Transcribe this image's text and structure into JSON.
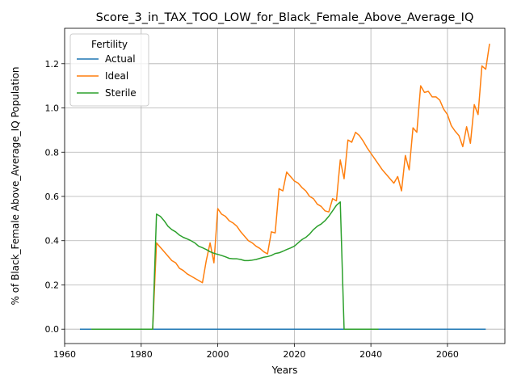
{
  "chart_data": {
    "type": "line",
    "title": "Score_3_in_TAX_TOO_LOW_for_Black_Female_Above_Average_IQ",
    "xlabel": "Years",
    "ylabel": "% of Black_Female Above_Average_IQ Population",
    "xlim": [
      1960,
      2075
    ],
    "ylim": [
      -0.065,
      1.36
    ],
    "xticks": [
      1960,
      1980,
      2000,
      2020,
      2040,
      2060
    ],
    "yticks": [
      0.0,
      0.2,
      0.4,
      0.6,
      0.8,
      1.0,
      1.2
    ],
    "xtick_labels": [
      "1960",
      "1980",
      "2000",
      "2020",
      "2040",
      "2060"
    ],
    "ytick_labels": [
      "0.0",
      "0.2",
      "0.4",
      "0.6",
      "0.8",
      "1.0",
      "1.2"
    ],
    "grid": true,
    "legend": {
      "title": "Fertility",
      "placement": "top-left"
    },
    "series": [
      {
        "name": "Actual",
        "color": "#1f77b4",
        "points": [
          [
            1964,
            0.0
          ],
          [
            2070,
            0.0
          ]
        ]
      },
      {
        "name": "Ideal",
        "color": "#ff7f0e",
        "points": [
          [
            1967,
            0.0
          ],
          [
            1983,
            0.0
          ],
          [
            1984,
            0.39
          ],
          [
            1985,
            0.37
          ],
          [
            1986,
            0.35
          ],
          [
            1987,
            0.33
          ],
          [
            1988,
            0.31
          ],
          [
            1989,
            0.3
          ],
          [
            1990,
            0.275
          ],
          [
            1991,
            0.265
          ],
          [
            1992,
            0.25
          ],
          [
            1993,
            0.24
          ],
          [
            1994,
            0.23
          ],
          [
            1995,
            0.22
          ],
          [
            1996,
            0.21
          ],
          [
            1997,
            0.31
          ],
          [
            1998,
            0.39
          ],
          [
            1999,
            0.3
          ],
          [
            2000,
            0.545
          ],
          [
            2001,
            0.52
          ],
          [
            2002,
            0.51
          ],
          [
            2003,
            0.49
          ],
          [
            2004,
            0.48
          ],
          [
            2005,
            0.465
          ],
          [
            2006,
            0.44
          ],
          [
            2007,
            0.42
          ],
          [
            2008,
            0.4
          ],
          [
            2009,
            0.39
          ],
          [
            2010,
            0.375
          ],
          [
            2011,
            0.365
          ],
          [
            2012,
            0.35
          ],
          [
            2013,
            0.34
          ],
          [
            2014,
            0.44
          ],
          [
            2015,
            0.435
          ],
          [
            2016,
            0.635
          ],
          [
            2017,
            0.625
          ],
          [
            2018,
            0.71
          ],
          [
            2019,
            0.69
          ],
          [
            2020,
            0.67
          ],
          [
            2021,
            0.66
          ],
          [
            2022,
            0.64
          ],
          [
            2023,
            0.625
          ],
          [
            2024,
            0.6
          ],
          [
            2025,
            0.59
          ],
          [
            2026,
            0.565
          ],
          [
            2027,
            0.555
          ],
          [
            2028,
            0.535
          ],
          [
            2029,
            0.53
          ],
          [
            2030,
            0.59
          ],
          [
            2031,
            0.58
          ],
          [
            2032,
            0.765
          ],
          [
            2033,
            0.68
          ],
          [
            2034,
            0.855
          ],
          [
            2035,
            0.845
          ],
          [
            2036,
            0.89
          ],
          [
            2037,
            0.875
          ],
          [
            2038,
            0.85
          ],
          [
            2039,
            0.82
          ],
          [
            2040,
            0.795
          ],
          [
            2041,
            0.77
          ],
          [
            2042,
            0.745
          ],
          [
            2043,
            0.72
          ],
          [
            2044,
            0.7
          ],
          [
            2045,
            0.68
          ],
          [
            2046,
            0.66
          ],
          [
            2047,
            0.69
          ],
          [
            2048,
            0.625
          ],
          [
            2049,
            0.785
          ],
          [
            2050,
            0.72
          ],
          [
            2051,
            0.91
          ],
          [
            2052,
            0.89
          ],
          [
            2053,
            1.1
          ],
          [
            2054,
            1.07
          ],
          [
            2055,
            1.075
          ],
          [
            2056,
            1.05
          ],
          [
            2057,
            1.05
          ],
          [
            2058,
            1.035
          ],
          [
            2059,
            0.995
          ],
          [
            2060,
            0.97
          ],
          [
            2061,
            0.92
          ],
          [
            2062,
            0.895
          ],
          [
            2063,
            0.875
          ],
          [
            2064,
            0.825
          ],
          [
            2065,
            0.915
          ],
          [
            2066,
            0.84
          ],
          [
            2067,
            1.015
          ],
          [
            2068,
            0.97
          ],
          [
            2069,
            1.19
          ],
          [
            2070,
            1.175
          ],
          [
            2071,
            1.29
          ]
        ]
      },
      {
        "name": "Sterile",
        "color": "#2ca02c",
        "points": [
          [
            1967,
            0.0
          ],
          [
            1983,
            0.0
          ],
          [
            1984,
            0.52
          ],
          [
            1985,
            0.51
          ],
          [
            1986,
            0.49
          ],
          [
            1987,
            0.465
          ],
          [
            1988,
            0.45
          ],
          [
            1989,
            0.44
          ],
          [
            1990,
            0.425
          ],
          [
            1991,
            0.415
          ],
          [
            1992,
            0.408
          ],
          [
            1993,
            0.4
          ],
          [
            1994,
            0.39
          ],
          [
            1995,
            0.375
          ],
          [
            1996,
            0.368
          ],
          [
            1997,
            0.36
          ],
          [
            1998,
            0.35
          ],
          [
            1999,
            0.343
          ],
          [
            2000,
            0.338
          ],
          [
            2001,
            0.333
          ],
          [
            2002,
            0.327
          ],
          [
            2003,
            0.32
          ],
          [
            2004,
            0.318
          ],
          [
            2005,
            0.318
          ],
          [
            2006,
            0.315
          ],
          [
            2007,
            0.31
          ],
          [
            2008,
            0.31
          ],
          [
            2009,
            0.312
          ],
          [
            2010,
            0.315
          ],
          [
            2011,
            0.32
          ],
          [
            2012,
            0.325
          ],
          [
            2013,
            0.328
          ],
          [
            2014,
            0.333
          ],
          [
            2015,
            0.342
          ],
          [
            2016,
            0.345
          ],
          [
            2017,
            0.352
          ],
          [
            2018,
            0.36
          ],
          [
            2019,
            0.367
          ],
          [
            2020,
            0.375
          ],
          [
            2021,
            0.39
          ],
          [
            2022,
            0.405
          ],
          [
            2023,
            0.415
          ],
          [
            2024,
            0.43
          ],
          [
            2025,
            0.45
          ],
          [
            2026,
            0.465
          ],
          [
            2027,
            0.475
          ],
          [
            2028,
            0.49
          ],
          [
            2029,
            0.51
          ],
          [
            2030,
            0.535
          ],
          [
            2031,
            0.56
          ],
          [
            2032,
            0.575
          ],
          [
            2033,
            0.0
          ],
          [
            2042,
            0.0
          ]
        ]
      }
    ]
  }
}
